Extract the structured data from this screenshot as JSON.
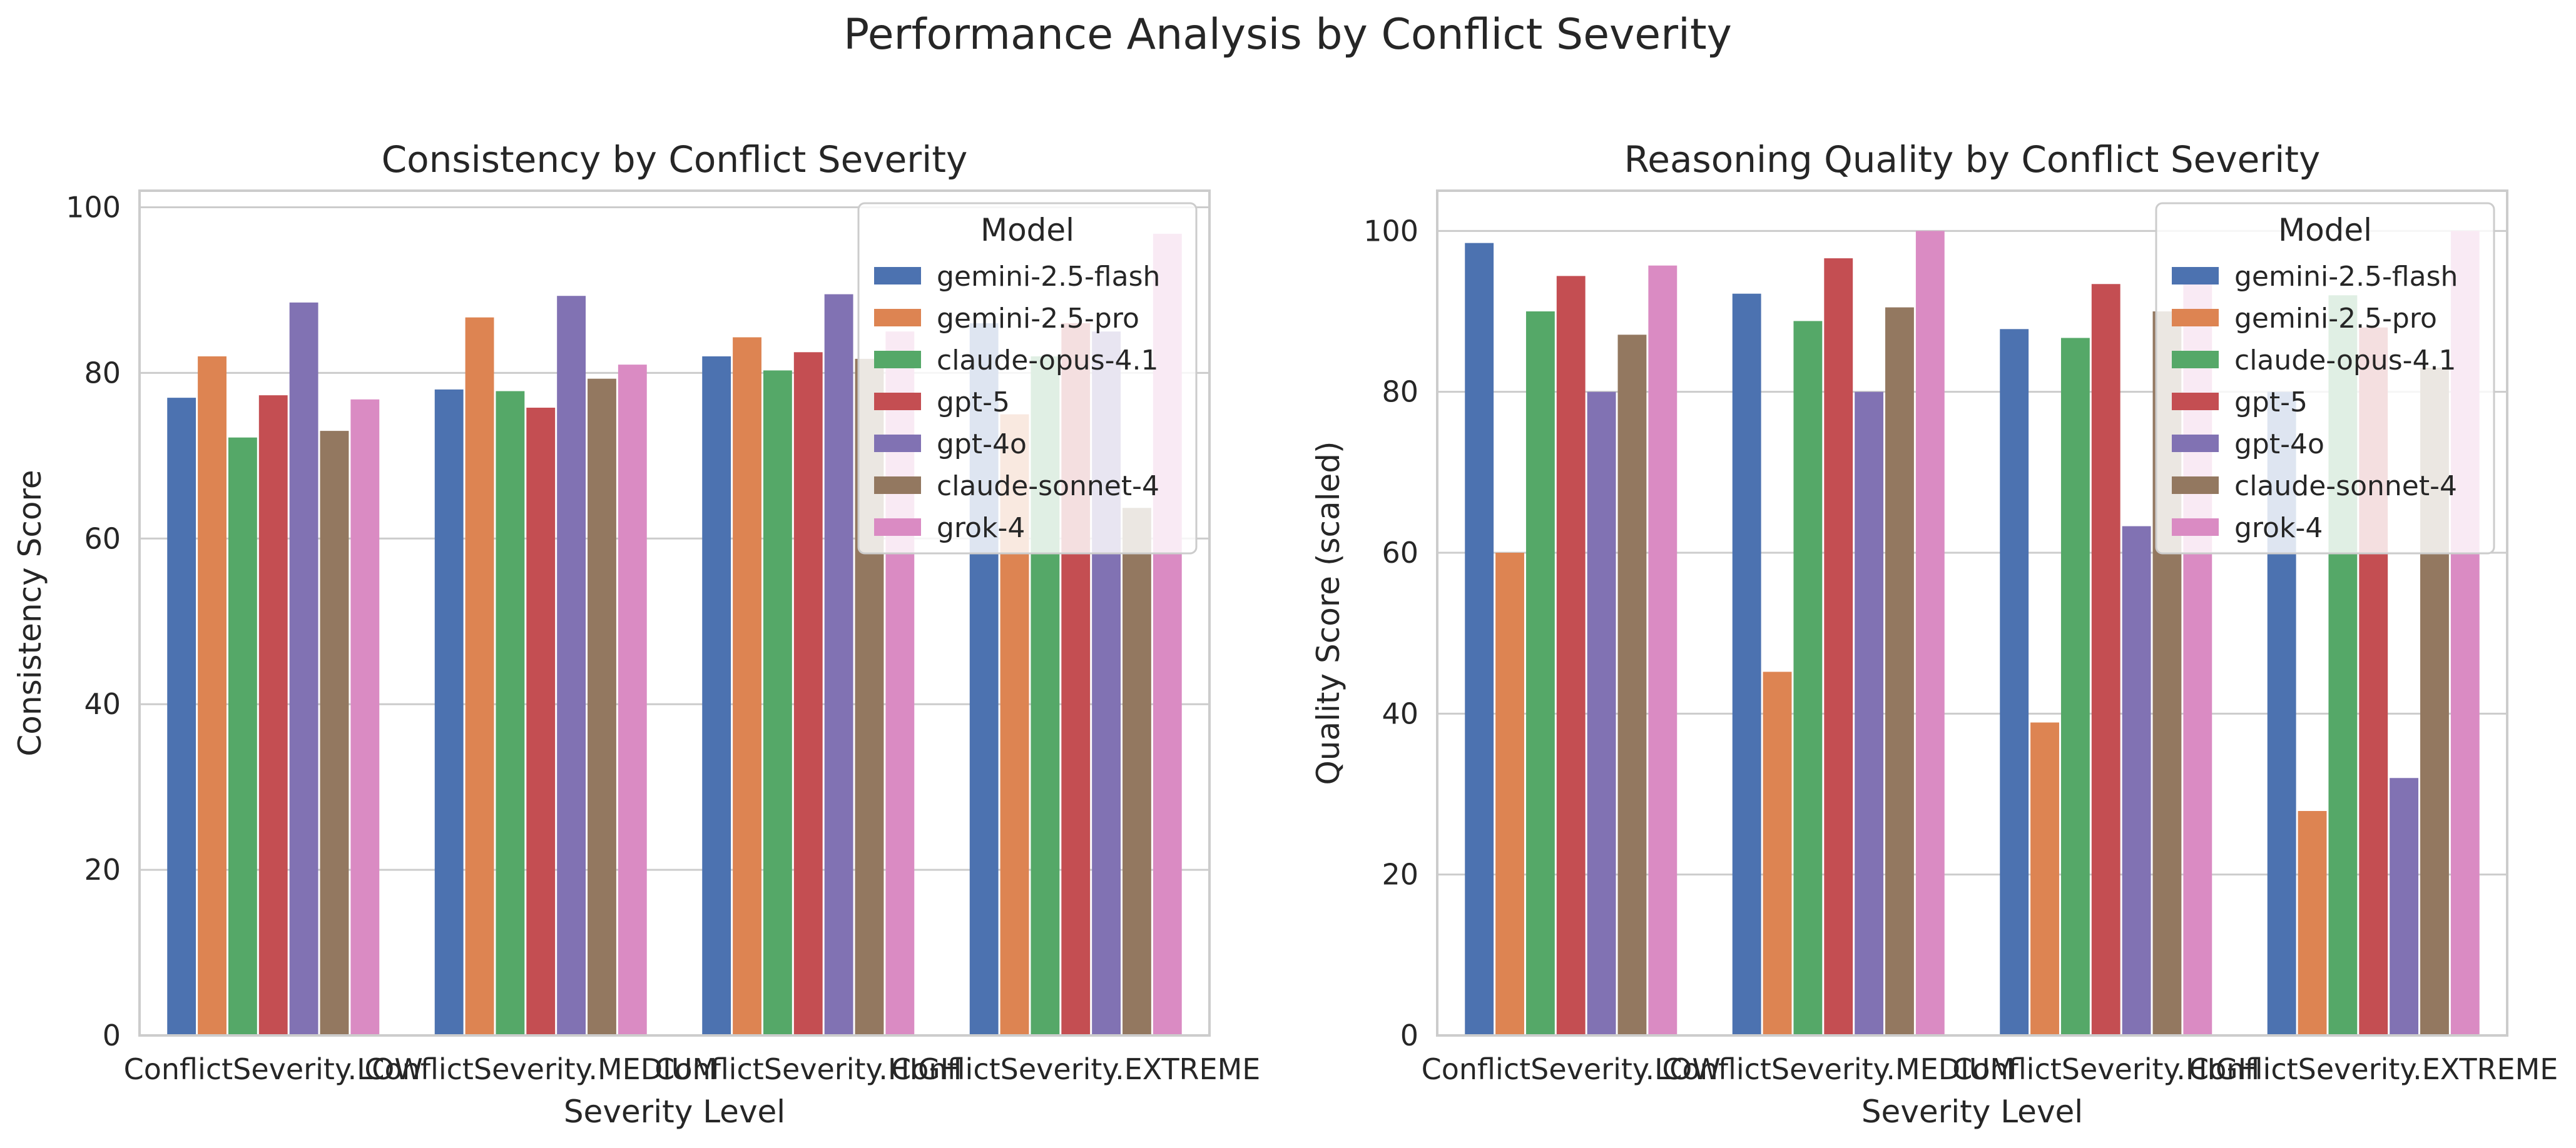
{
  "figure": {
    "title": "Performance Analysis by Conflict Severity"
  },
  "colors": {
    "gemini-2.5-flash": "#4c72b0",
    "gemini-2.5-pro": "#dd8452",
    "claude-opus-4.1": "#55a868",
    "gpt-5": "#c44e52",
    "gpt-4o": "#8172b3",
    "claude-sonnet-4": "#937860",
    "grok-4": "#da8bc3",
    "grid": "#cccccc",
    "spine": "#cccccc"
  },
  "chart_data": [
    {
      "type": "bar",
      "title": "Consistency by Conflict Severity",
      "xlabel": "Severity Level",
      "ylabel": "Consistency Score",
      "ylim": [
        0,
        102
      ],
      "yticks": [
        0,
        20,
        40,
        60,
        80,
        100
      ],
      "grid": "horizontal",
      "legend": {
        "title": "Model",
        "placement": "top-right"
      },
      "categories": [
        "ConflictSeverity.LOW",
        "ConflictSeverity.MEDIUM",
        "ConflictSeverity.HIGH",
        "ConflictSeverity.EXTREME"
      ],
      "series": [
        {
          "name": "gemini-2.5-flash",
          "values": [
            77,
            78,
            82,
            86
          ]
        },
        {
          "name": "gemini-2.5-pro",
          "values": [
            82,
            86.7,
            84.3,
            75
          ]
        },
        {
          "name": "claude-opus-4.1",
          "values": [
            72.2,
            77.8,
            80.3,
            82
          ]
        },
        {
          "name": "gpt-5",
          "values": [
            77.3,
            75.8,
            82.5,
            86
          ]
        },
        {
          "name": "gpt-4o",
          "values": [
            88.5,
            89.3,
            89.5,
            85
          ]
        },
        {
          "name": "claude-sonnet-4",
          "values": [
            73,
            79.3,
            81.7,
            63.7
          ]
        },
        {
          "name": "grok-4",
          "values": [
            76.8,
            81,
            85,
            96.8
          ]
        }
      ]
    },
    {
      "type": "bar",
      "title": "Reasoning Quality by Conflict Severity",
      "xlabel": "Severity Level",
      "ylabel": "Quality Score (scaled)",
      "ylim": [
        0,
        105
      ],
      "yticks": [
        0,
        20,
        40,
        60,
        80,
        100
      ],
      "grid": "horizontal",
      "legend": {
        "title": "Model",
        "placement": "top-right"
      },
      "categories": [
        "ConflictSeverity.LOW",
        "ConflictSeverity.MEDIUM",
        "ConflictSeverity.HIGH",
        "ConflictSeverity.EXTREME"
      ],
      "series": [
        {
          "name": "gemini-2.5-flash",
          "values": [
            98.5,
            92.2,
            87.8,
            80
          ]
        },
        {
          "name": "gemini-2.5-pro",
          "values": [
            60,
            45.2,
            38.9,
            27.9
          ]
        },
        {
          "name": "claude-opus-4.1",
          "values": [
            90,
            88.8,
            86.7,
            92
          ]
        },
        {
          "name": "gpt-5",
          "values": [
            94.4,
            96.6,
            93.4,
            88
          ]
        },
        {
          "name": "gpt-4o",
          "values": [
            80,
            80,
            63.3,
            32
          ]
        },
        {
          "name": "claude-sonnet-4",
          "values": [
            87.1,
            90.5,
            90,
            83
          ]
        },
        {
          "name": "grok-4",
          "values": [
            95.7,
            100,
            94,
            100
          ]
        }
      ]
    }
  ]
}
